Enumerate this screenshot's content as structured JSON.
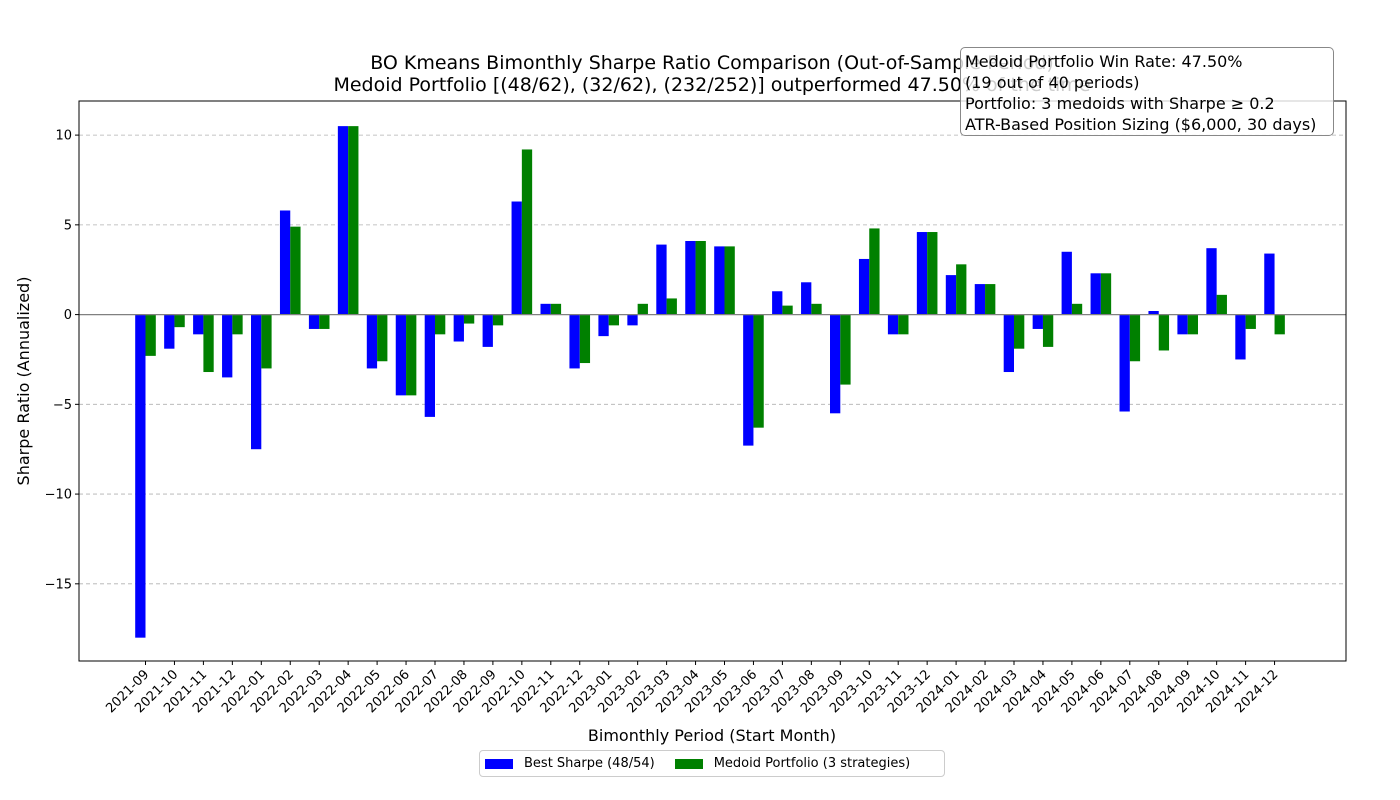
{
  "chart_data": {
    "type": "bar",
    "title": "BO Kmeans Bimonthly Sharpe Ratio Comparison (Out-of-Sample Period)",
    "subtitle": "Medoid Portfolio [(48/62), (32/62), (232/252)] outperformed 47.50% of the time",
    "xlabel": "Bimonthly Period (Start Month)",
    "ylabel": "Sharpe Ratio (Annualized)",
    "ylim": [
      -19.3,
      11.9
    ],
    "yticks": [
      10,
      5,
      0,
      -5,
      -10,
      -15
    ],
    "ytick_labels": [
      "10",
      "5",
      "0",
      "−5",
      "−10",
      "−15"
    ],
    "grid": "horizontal dashed",
    "legend_position": "bottom-center",
    "categories": [
      "2021-09",
      "2021-10",
      "2021-11",
      "2021-12",
      "2022-01",
      "2022-02",
      "2022-03",
      "2022-04",
      "2022-05",
      "2022-06",
      "2022-07",
      "2022-08",
      "2022-09",
      "2022-10",
      "2022-11",
      "2022-12",
      "2023-01",
      "2023-02",
      "2023-03",
      "2023-04",
      "2023-05",
      "2023-06",
      "2023-07",
      "2023-08",
      "2023-09",
      "2023-10",
      "2023-11",
      "2023-12",
      "2024-01",
      "2024-02",
      "2024-03",
      "2024-04",
      "2024-05",
      "2024-06",
      "2024-07",
      "2024-08",
      "2024-09",
      "2024-10",
      "2024-11",
      "2024-12"
    ],
    "series": [
      {
        "name": "Best Sharpe (48/54)",
        "color": "#0000ff",
        "values": [
          -18.0,
          -1.9,
          -1.1,
          -3.5,
          -7.5,
          5.8,
          -0.8,
          10.5,
          -3.0,
          -4.5,
          -5.7,
          -1.5,
          -1.8,
          6.3,
          0.6,
          -3.0,
          -1.2,
          -0.6,
          3.9,
          4.1,
          3.8,
          -7.3,
          1.3,
          1.8,
          -5.5,
          3.1,
          -1.1,
          4.6,
          2.2,
          1.7,
          -3.2,
          -0.8,
          3.5,
          2.3,
          -5.4,
          0.2,
          -1.1,
          3.7,
          -2.5,
          3.4
        ]
      },
      {
        "name": "Medoid Portfolio (3 strategies)",
        "color": "#008000",
        "values": [
          -2.3,
          -0.7,
          -3.2,
          -1.1,
          -3.0,
          4.9,
          -0.8,
          10.5,
          -2.6,
          -4.5,
          -1.1,
          -0.5,
          -0.6,
          9.2,
          0.6,
          -2.7,
          -0.6,
          0.6,
          0.9,
          4.1,
          3.8,
          -6.3,
          0.5,
          0.6,
          -3.9,
          4.8,
          -1.1,
          4.6,
          2.8,
          1.7,
          -1.9,
          -1.8,
          0.6,
          2.3,
          -2.6,
          -2.0,
          -1.1,
          1.1,
          -0.8,
          -1.1
        ]
      }
    ],
    "annotation_lines": [
      "Medoid Portfolio Win Rate: 47.50%",
      "(19 out of 40 periods)",
      "Portfolio: 3 medoids with Sharpe ≥ 0.2",
      "ATR-Based Position Sizing ($6,000, 30 days)"
    ]
  }
}
